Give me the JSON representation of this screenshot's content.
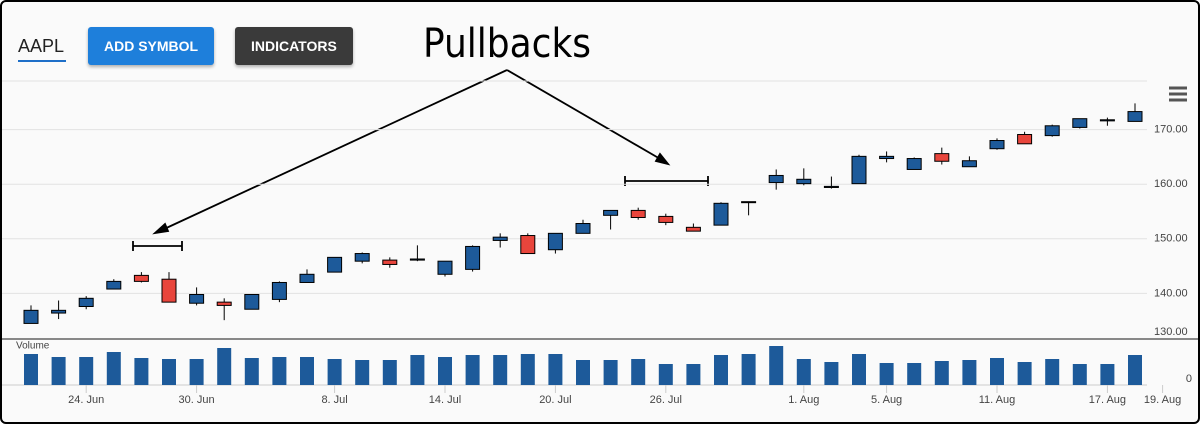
{
  "header": {
    "symbol": "AAPL",
    "buttons": [
      "ADD SYMBOL",
      "INDICATORS"
    ]
  },
  "chart_data": {
    "type": "candlestick",
    "annotation": "Pullbacks",
    "categories": [
      null,
      null,
      "24. Jun",
      null,
      null,
      null,
      "30. Jun",
      null,
      null,
      null,
      null,
      "8. Jul",
      null,
      null,
      null,
      "14. Jul",
      null,
      null,
      null,
      "20. Jul",
      null,
      null,
      null,
      "26. Jul",
      null,
      null,
      null,
      null,
      "1. Aug",
      null,
      null,
      "5. Aug",
      null,
      null,
      null,
      "11. Aug",
      null,
      null,
      null,
      "17. Aug",
      null,
      "19. Aug"
    ],
    "open": [
      134.5,
      136.4,
      137.6,
      140.8,
      143.3,
      142.6,
      138.2,
      138.4,
      137.1,
      138.9,
      142.0,
      143.9,
      145.9,
      146.1,
      146.1,
      143.5,
      144.4,
      149.7,
      150.6,
      148.0,
      151.0,
      154.3,
      155.2,
      154.1,
      152.1,
      152.5,
      156.7,
      160.3,
      160.1,
      159.4,
      160.1,
      164.7,
      162.7,
      165.6,
      163.2,
      166.5,
      169.1,
      168.9,
      170.4,
      171.6,
      171.5,
      null
    ],
    "high": [
      137.8,
      138.7,
      139.5,
      142.6,
      143.9,
      143.9,
      141.1,
      139.1,
      139.8,
      142.2,
      144.4,
      146.6,
      147.5,
      146.6,
      148.8,
      145.9,
      148.8,
      151.0,
      151.0,
      151.0,
      153.5,
      155.2,
      155.7,
      154.6,
      152.8,
      156.7,
      156.8,
      162.7,
      162.9,
      161.4,
      165.4,
      166.0,
      164.9,
      166.7,
      165.1,
      168.4,
      169.6,
      170.9,
      172.0,
      172.2,
      174.8,
      null
    ],
    "low": [
      134.5,
      135.3,
      137.1,
      140.8,
      142.0,
      138.4,
      137.8,
      135.1,
      137.1,
      138.4,
      142.0,
      143.9,
      145.5,
      144.7,
      145.9,
      143.1,
      144.0,
      148.4,
      147.3,
      147.3,
      151.0,
      151.7,
      153.5,
      152.5,
      151.4,
      152.5,
      154.3,
      159.0,
      159.8,
      159.2,
      160.1,
      164.0,
      162.7,
      163.6,
      163.2,
      166.3,
      167.4,
      168.7,
      170.2,
      170.7,
      171.5,
      null
    ],
    "close": [
      136.9,
      136.9,
      139.1,
      142.2,
      142.2,
      138.4,
      139.8,
      137.8,
      139.8,
      142.0,
      143.5,
      146.6,
      147.3,
      145.3,
      146.3,
      145.9,
      148.6,
      150.3,
      147.3,
      151.0,
      152.8,
      155.2,
      153.9,
      153.0,
      151.4,
      156.5,
      156.8,
      161.6,
      160.9,
      159.6,
      165.1,
      165.1,
      164.7,
      164.2,
      164.3,
      168.0,
      167.4,
      170.7,
      172.0,
      171.8,
      173.3,
      null
    ],
    "up_color": "#1d5a9a",
    "down_color": "#e8453c",
    "ylim": [
      130,
      180
    ],
    "yticks": [
      {
        "value": 130,
        "label": "130.00"
      },
      {
        "value": 140,
        "label": "140.00"
      },
      {
        "value": 150,
        "label": "150.00"
      },
      {
        "value": 160,
        "label": "160.00"
      },
      {
        "value": 170,
        "label": "170.00"
      }
    ],
    "volume": {
      "label": "Volume",
      "color": "#1d5a9a",
      "ylim": [
        0,
        45
      ],
      "yticks": [
        0
      ],
      "values": [
        31,
        28,
        28,
        33,
        27,
        26,
        26,
        37,
        27,
        28,
        28,
        26,
        25,
        25,
        30,
        28,
        30,
        30,
        31,
        31,
        25,
        25,
        26,
        21,
        21,
        30,
        31,
        39,
        26,
        23,
        31,
        22,
        22,
        24,
        25,
        27,
        23,
        26,
        21,
        21,
        30,
        null
      ]
    }
  }
}
